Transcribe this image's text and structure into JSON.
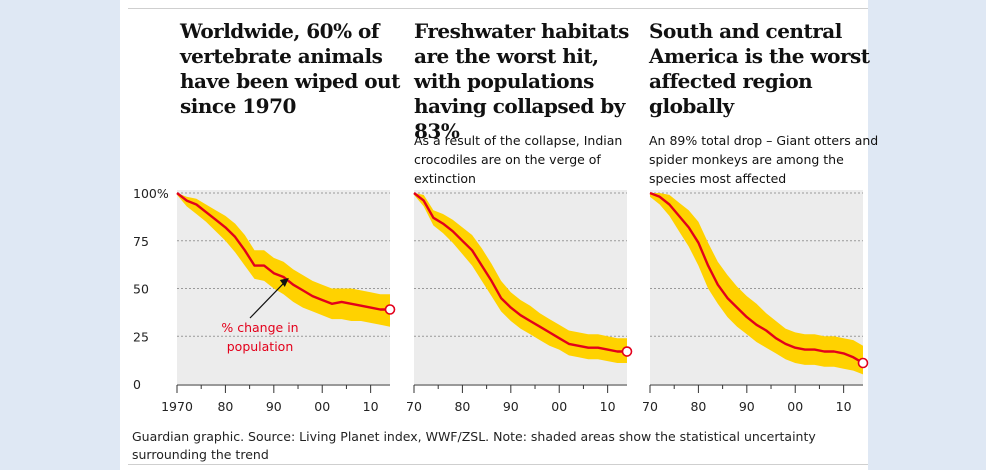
{
  "colors": {
    "trend": "#e3001b",
    "band": "#ffd200",
    "panel_bg": "#ececec",
    "grid": "#9a9a9a",
    "endpoint_fill": "#ffffff"
  },
  "footnote": "Guardian graphic. Source: Living Planet index, WWF/ZSL. Note: shaded areas show the statistical uncertainty surrounding the trend",
  "y_tick_labels": [
    "100%",
    "75",
    "50",
    "25",
    "0"
  ],
  "chart_data": [
    {
      "type": "line",
      "title": "Worldwide, 60% of vertebrate animals have been wiped out since 1970",
      "subtitle": "",
      "annotation_line1": "% change in",
      "annotation_line2": "population",
      "xlim": [
        1970,
        2014
      ],
      "ylim": [
        0,
        100
      ],
      "y_ticks": [
        100,
        75,
        50,
        25,
        0
      ],
      "x_tick_values": [
        1970,
        1980,
        1990,
        2000,
        2010
      ],
      "x_tick_labels": [
        "1970",
        "80",
        "90",
        "00",
        "10"
      ],
      "series": [
        {
          "x": [
            1970,
            1972,
            1974,
            1976,
            1978,
            1980,
            1982,
            1984,
            1986,
            1988,
            1990,
            1992,
            1994,
            1996,
            1998,
            2000,
            2002,
            2004,
            2006,
            2008,
            2010,
            2012,
            2014
          ],
          "values": [
            100,
            96,
            94,
            90,
            86,
            82,
            77,
            70,
            62,
            62,
            58,
            56,
            52,
            49,
            46,
            44,
            42,
            43,
            42,
            41,
            40,
            39,
            39
          ],
          "lower": [
            99,
            93,
            89,
            85,
            80,
            75,
            69,
            62,
            55,
            54,
            50,
            47,
            43,
            40,
            38,
            36,
            34,
            34,
            33,
            33,
            32,
            31,
            30
          ],
          "upper": [
            100,
            98,
            97,
            94,
            91,
            88,
            84,
            78,
            70,
            70,
            66,
            64,
            60,
            57,
            54,
            52,
            50,
            50,
            50,
            49,
            48,
            47,
            47
          ]
        }
      ]
    },
    {
      "type": "line",
      "title": "Freshwater habitats are the worst hit, with populations having collapsed by 83%",
      "subtitle": "As a result of the collapse, Indian crocodiles are on the verge of extinction",
      "xlim": [
        1970,
        2014
      ],
      "ylim": [
        0,
        100
      ],
      "y_ticks": [
        100,
        75,
        50,
        25,
        0
      ],
      "x_tick_values": [
        1970,
        1980,
        1990,
        2000,
        2010
      ],
      "x_tick_labels": [
        "70",
        "80",
        "90",
        "00",
        "10"
      ],
      "series": [
        {
          "x": [
            1970,
            1972,
            1974,
            1976,
            1978,
            1980,
            1982,
            1984,
            1986,
            1988,
            1990,
            1992,
            1994,
            1996,
            1998,
            2000,
            2002,
            2004,
            2006,
            2008,
            2010,
            2012,
            2014
          ],
          "values": [
            100,
            96,
            87,
            84,
            80,
            75,
            70,
            62,
            54,
            45,
            40,
            36,
            33,
            30,
            27,
            24,
            21,
            20,
            19,
            19,
            18,
            17,
            17
          ],
          "lower": [
            99,
            93,
            83,
            79,
            74,
            68,
            62,
            54,
            46,
            38,
            33,
            29,
            26,
            23,
            20,
            18,
            15,
            14,
            13,
            13,
            12,
            11,
            11
          ],
          "upper": [
            100,
            99,
            91,
            89,
            86,
            82,
            78,
            71,
            63,
            54,
            48,
            44,
            41,
            37,
            34,
            31,
            28,
            27,
            26,
            26,
            25,
            24,
            24
          ]
        }
      ]
    },
    {
      "type": "line",
      "title": "South and central America is the worst affected region globally",
      "subtitle": "An 89% total drop – Giant otters and spider monkeys are among the species most affected",
      "xlim": [
        1970,
        2014
      ],
      "ylim": [
        0,
        100
      ],
      "y_ticks": [
        100,
        75,
        50,
        25,
        0
      ],
      "x_tick_values": [
        1970,
        1980,
        1990,
        2000,
        2010
      ],
      "x_tick_labels": [
        "70",
        "80",
        "90",
        "00",
        "10"
      ],
      "series": [
        {
          "x": [
            1970,
            1972,
            1974,
            1976,
            1978,
            1980,
            1982,
            1984,
            1986,
            1988,
            1990,
            1992,
            1994,
            1996,
            1998,
            2000,
            2002,
            2004,
            2006,
            2008,
            2010,
            2012,
            2014
          ],
          "values": [
            100,
            98,
            94,
            88,
            82,
            74,
            62,
            52,
            45,
            40,
            35,
            31,
            28,
            24,
            21,
            19,
            18,
            18,
            17,
            17,
            16,
            14,
            11
          ],
          "lower": [
            98,
            94,
            88,
            80,
            72,
            62,
            50,
            42,
            35,
            30,
            26,
            22,
            19,
            16,
            13,
            11,
            10,
            10,
            9,
            9,
            8,
            7,
            5
          ],
          "upper": [
            100,
            100,
            99,
            95,
            91,
            85,
            74,
            64,
            57,
            51,
            46,
            42,
            37,
            33,
            29,
            27,
            26,
            26,
            25,
            25,
            24,
            23,
            20
          ]
        }
      ]
    }
  ]
}
